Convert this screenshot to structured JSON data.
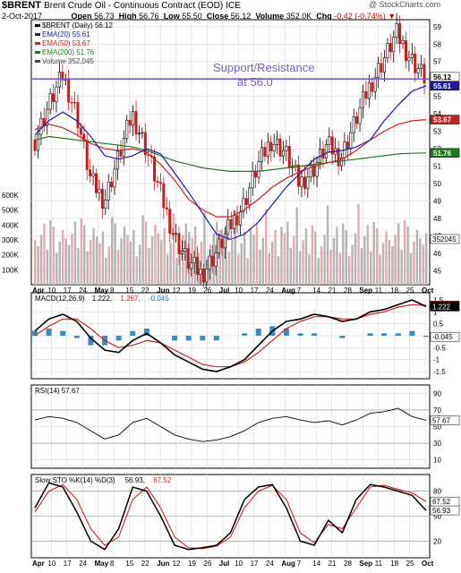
{
  "header": {
    "symbol": "$BRENT",
    "name": "Brent Crude Oil - Continuous Contract (EOD)",
    "exchange": "ICE",
    "watermark": "@ StockCharts.com",
    "date": "2-Oct-2017",
    "open_label": "Open",
    "open": "56.73",
    "high_label": "High",
    "high": "56.76",
    "low_label": "Low",
    "low": "55.50",
    "close_label": "Close",
    "close": "56.12",
    "volume_label": "Volume",
    "volume": "352.0K",
    "chg_label": "Chg",
    "chg": "-0.42 (-0.74%)",
    "chg_color": "#cc0000"
  },
  "chart_data": [
    {
      "type": "candlestick",
      "panel": "price",
      "legend": [
        {
          "text": "$BRENT (Daily) 56.12",
          "color": "#000000"
        },
        {
          "text": "EMA(20) 55.61",
          "color": "#1a1aa6"
        },
        {
          "text": "EMA(50) 53.67",
          "color": "#cc2020"
        },
        {
          "text": "EMA(200) 51.76",
          "color": "#1e7a1e"
        },
        {
          "text": "Volume 352,045",
          "color": "#444444"
        }
      ],
      "annotation": {
        "line1": "Support/Resistance",
        "line2": "at 56.0",
        "level": 56.0,
        "color": "#7a5ac8"
      },
      "y_ticks": [
        45,
        46,
        47,
        48,
        49,
        50,
        51,
        52,
        53,
        54,
        55,
        56,
        57,
        58,
        59
      ],
      "y_range": [
        44.2,
        59.4
      ],
      "last_labels": [
        {
          "text": "56.12",
          "value": 56.12,
          "bg": "#ffffff",
          "fg": "#000000"
        },
        {
          "text": "55.61",
          "value": 55.61,
          "bg": "#1a1aa6",
          "fg": "#ffffff"
        },
        {
          "text": "53.67",
          "value": 53.67,
          "bg": "#cc2020",
          "fg": "#ffffff"
        },
        {
          "text": "51.76",
          "value": 51.76,
          "bg": "#1e7a1e",
          "fg": "#ffffff"
        }
      ],
      "volume_ticks": [
        "100K",
        "200K",
        "300K",
        "400K",
        "500K",
        "600K"
      ],
      "volume_last": "352045",
      "x_labels": [
        "Apr",
        "10",
        "17",
        "24",
        "May",
        "8",
        "15",
        "22",
        "Jun",
        "12",
        "19",
        "26",
        "Jul",
        "10",
        "17",
        "24",
        "Aug",
        "7",
        "14",
        "21",
        "28",
        "Sep",
        "11",
        "18",
        "25",
        "Oct"
      ],
      "ema20": [
        52.8,
        53.6,
        54.1,
        53.6,
        52.7,
        51.6,
        51.4,
        51.6,
        52.0,
        51.7,
        50.6,
        49.5,
        48.3,
        47.1,
        46.8,
        47.1,
        47.8,
        48.8,
        49.8,
        50.6,
        51.4,
        51.8,
        51.9,
        52.1,
        52.5,
        53.6,
        54.5,
        55.3,
        55.61
      ],
      "ema50": [
        53.1,
        53.4,
        53.2,
        52.8,
        52.3,
        52.0,
        51.9,
        52.0,
        51.8,
        51.1,
        50.2,
        49.1,
        48.5,
        48.1,
        48.1,
        48.5,
        49.1,
        49.8,
        50.3,
        50.7,
        51.0,
        51.2,
        51.4,
        51.9,
        52.5,
        53.0,
        53.4,
        53.6,
        53.67
      ],
      "ema200": [
        52.5,
        52.7,
        52.6,
        52.5,
        52.4,
        52.3,
        52.2,
        52.1,
        51.9,
        51.6,
        51.3,
        51.1,
        50.9,
        50.8,
        50.7,
        50.7,
        50.7,
        50.8,
        50.9,
        51.0,
        51.1,
        51.2,
        51.3,
        51.4,
        51.5,
        51.6,
        51.7,
        51.74,
        51.76
      ]
    },
    {
      "type": "line",
      "panel": "macd",
      "legend": [
        {
          "text": "MACD(12,26,9)",
          "color": "#000000"
        },
        {
          "text": "1.222,",
          "color": "#000000"
        },
        {
          "text": "1.267,",
          "color": "#cc2020"
        },
        {
          "text": "-0.045",
          "color": "#1f6fa8"
        }
      ],
      "y_ticks": [
        -1.5,
        -1.0,
        -0.5,
        0.0,
        0.5,
        1.0,
        1.5
      ],
      "y_range": [
        -1.8,
        1.8
      ],
      "last_labels": [
        {
          "text": "1.267",
          "value": 1.267,
          "bg": "#cc2020",
          "fg": "#ffffff"
        },
        {
          "text": "1.222",
          "value": 1.222,
          "bg": "#000000",
          "fg": "#ffffff"
        },
        {
          "text": "-0.045",
          "value": -0.045,
          "bg": "#ffffff",
          "fg": "#000000"
        }
      ],
      "macd": [
        0.2,
        0.7,
        0.9,
        0.6,
        -0.1,
        -0.6,
        -0.7,
        -0.2,
        0.1,
        -0.3,
        -0.8,
        -1.1,
        -1.4,
        -1.5,
        -1.3,
        -1.0,
        -0.4,
        0.2,
        0.6,
        0.7,
        0.9,
        0.8,
        0.6,
        0.7,
        1.0,
        1.1,
        1.3,
        1.5,
        1.222
      ],
      "signal": [
        0.0,
        0.4,
        0.7,
        0.7,
        0.3,
        -0.2,
        -0.5,
        -0.4,
        -0.2,
        -0.3,
        -0.6,
        -0.9,
        -1.2,
        -1.3,
        -1.3,
        -1.1,
        -0.7,
        -0.2,
        0.3,
        0.6,
        0.8,
        0.8,
        0.7,
        0.7,
        0.9,
        1.0,
        1.2,
        1.3,
        1.267
      ]
    },
    {
      "type": "line",
      "panel": "rsi",
      "legend": [
        {
          "text": "RSI(14) 57.67",
          "color": "#000000"
        }
      ],
      "y_ticks": [
        10,
        30,
        50,
        70,
        90
      ],
      "y_range": [
        0,
        100
      ],
      "last_labels": [
        {
          "text": "57.67",
          "value": 57.67,
          "bg": "#ffffff",
          "fg": "#000000"
        }
      ],
      "rsi": [
        58,
        62,
        60,
        55,
        45,
        35,
        40,
        55,
        60,
        50,
        40,
        35,
        32,
        34,
        38,
        45,
        55,
        60,
        62,
        58,
        55,
        57,
        52,
        58,
        66,
        68,
        72,
        62,
        57.67
      ]
    },
    {
      "type": "line",
      "panel": "stochastic",
      "legend": [
        {
          "text": "Slow STO %K(14) %D(3)",
          "color": "#000000"
        },
        {
          "text": "56.93,",
          "color": "#000000"
        },
        {
          "text": "67.52",
          "color": "#cc2020"
        }
      ],
      "y_ticks": [
        20,
        50,
        80
      ],
      "y_range": [
        0,
        100
      ],
      "last_labels": [
        {
          "text": "67.52",
          "value": 67.52,
          "bg": "#ffffff",
          "fg": "#000000"
        },
        {
          "text": "56.93",
          "value": 56.93,
          "bg": "#ffffff",
          "fg": "#000000"
        }
      ],
      "k": [
        60,
        90,
        85,
        55,
        20,
        10,
        35,
        85,
        80,
        50,
        15,
        10,
        12,
        15,
        30,
        70,
        85,
        88,
        60,
        20,
        15,
        45,
        30,
        70,
        88,
        85,
        80,
        75,
        56.93
      ],
      "d": [
        55,
        80,
        88,
        70,
        35,
        15,
        25,
        70,
        85,
        60,
        25,
        12,
        11,
        14,
        25,
        60,
        80,
        87,
        70,
        30,
        18,
        40,
        35,
        60,
        85,
        87,
        82,
        78,
        67.52
      ]
    }
  ]
}
